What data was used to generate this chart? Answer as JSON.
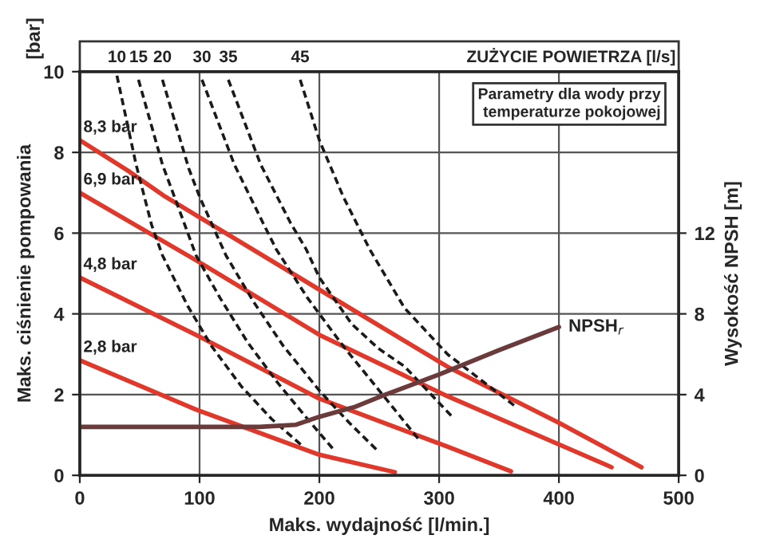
{
  "chart_data": {
    "type": "line",
    "xlabel": "Maks. wydajność [l/min.]",
    "ylabel": "Maks. ciśnienie pompowania",
    "y2label": "Wysokość NPSH [m]",
    "legend_title": "ZUŻYCIE POWIETRZA [l/s]",
    "annotations": [
      "Parametry dla wody przy\ntemperaturze pokojowej",
      "[bar]"
    ],
    "xlim": [
      0,
      500
    ],
    "xticks": [
      0,
      100,
      200,
      300,
      400,
      500
    ],
    "ylim": [
      0,
      10
    ],
    "yticks": [
      0,
      2,
      4,
      6,
      8,
      10
    ],
    "y2lim": [
      0,
      20
    ],
    "y2ticks": [
      0,
      4,
      8,
      12
    ],
    "grid": true,
    "series": [
      {
        "name": "8,3 bar",
        "color": "#e0392b",
        "x": [
          0,
          40,
          70,
          200,
          307,
          400,
          469
        ],
        "values": [
          8.3,
          7.55,
          6.93,
          4.6,
          2.69,
          1.3,
          0.2
        ]
      },
      {
        "name": "6,9 bar",
        "color": "#e0392b",
        "x": [
          0,
          97,
          200,
          307,
          444
        ],
        "values": [
          7.0,
          5.33,
          3.48,
          1.96,
          0.2
        ]
      },
      {
        "name": "4,8 bar",
        "color": "#e0392b",
        "x": [
          0,
          97,
          200,
          307,
          360
        ],
        "values": [
          4.9,
          3.48,
          1.9,
          0.71,
          0.1
        ]
      },
      {
        "name": "2,8 bar",
        "color": "#e0392b",
        "x": [
          0,
          97,
          200,
          263
        ],
        "values": [
          2.85,
          1.63,
          0.51,
          0.08
        ]
      },
      {
        "name": "10",
        "color": "#1a1a1a",
        "line_style": "dashed",
        "x": [
          31,
          47,
          60,
          69,
          90,
          110,
          135,
          160,
          187
        ],
        "values": [
          9.9,
          7.7,
          6.2,
          5.45,
          4.2,
          3.2,
          2.2,
          1.4,
          0.7
        ]
      },
      {
        "name": "15",
        "color": "#1a1a1a",
        "line_style": "dashed",
        "x": [
          49,
          69,
          89,
          97,
          117,
          140,
          165,
          190,
          213
        ],
        "values": [
          9.8,
          7.7,
          6.1,
          5.45,
          4.4,
          3.3,
          2.3,
          1.4,
          0.6
        ]
      },
      {
        "name": "20",
        "color": "#1a1a1a",
        "line_style": "dashed",
        "x": [
          69,
          91,
          100,
          122,
          145,
          170,
          200,
          225,
          249
        ],
        "values": [
          9.8,
          7.6,
          6.9,
          5.45,
          4.3,
          3.2,
          2.1,
          1.3,
          0.6
        ]
      },
      {
        "name": "30",
        "color": "#1a1a1a",
        "line_style": "dashed",
        "x": [
          102,
          129,
          153,
          164,
          190,
          220,
          250,
          284
        ],
        "values": [
          9.8,
          7.7,
          6.25,
          5.6,
          4.4,
          3.2,
          2.1,
          0.85
        ]
      },
      {
        "name": "35",
        "color": "#1a1a1a",
        "line_style": "dashed",
        "x": [
          124,
          151,
          176,
          189,
          200,
          227,
          249,
          271,
          311
        ],
        "values": [
          9.8,
          7.7,
          6.25,
          5.6,
          4.9,
          3.75,
          3.15,
          2.7,
          1.45
        ]
      },
      {
        "name": "45",
        "color": "#1a1a1a",
        "line_style": "dashed",
        "x": [
          184,
          200,
          220,
          242,
          271,
          307,
          364
        ],
        "values": [
          9.8,
          8.3,
          6.9,
          5.6,
          4.15,
          3.0,
          1.7
        ]
      },
      {
        "name": "NPSH$_{r}$",
        "color": "#6b3b3b",
        "axis": "y2",
        "x": [
          0,
          100,
          150,
          180,
          200,
          230,
          253,
          300,
          350,
          400
        ],
        "values": [
          2.4,
          2.4,
          2.4,
          2.5,
          2.9,
          3.4,
          3.95,
          5.0,
          6.2,
          7.35
        ]
      }
    ]
  }
}
